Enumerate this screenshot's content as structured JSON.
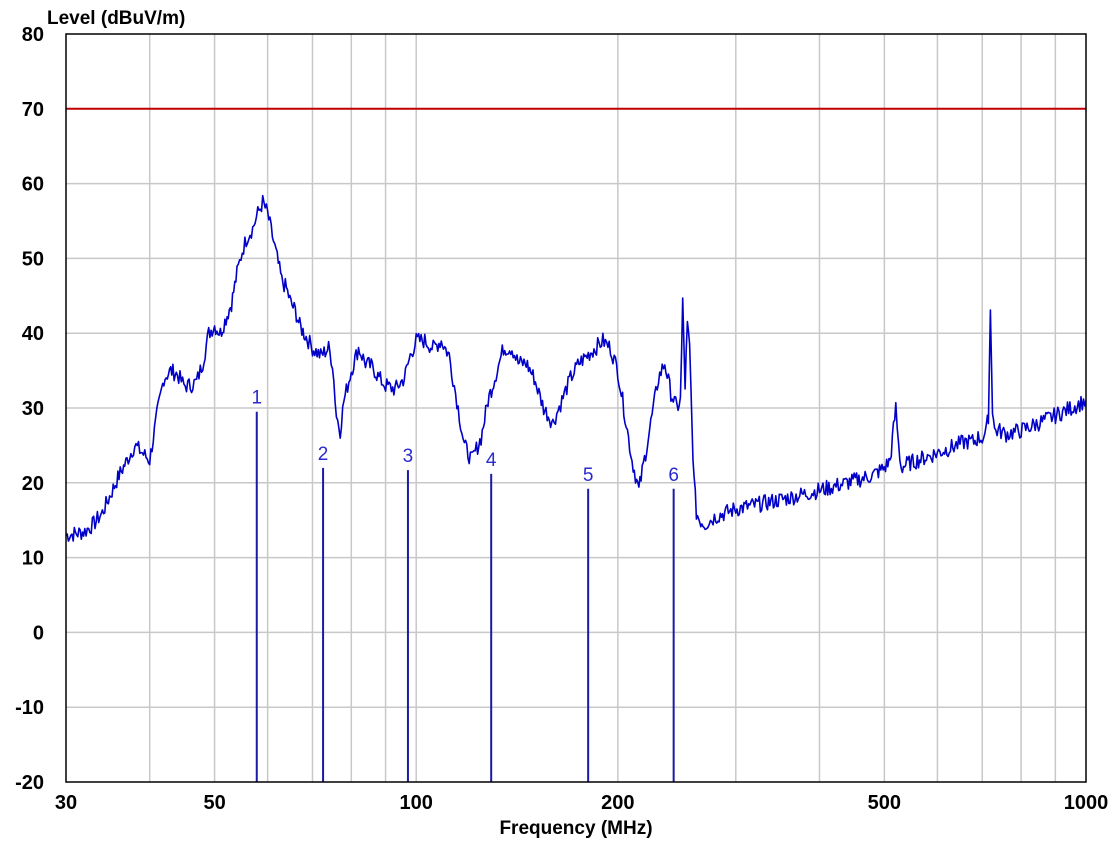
{
  "chart_data": {
    "type": "line",
    "xlabel": "Frequency (MHz)",
    "ylabel": "Level (dBuV/m)",
    "x_scale": "log",
    "xlim": [
      30,
      1000
    ],
    "ylim": [
      -20,
      80
    ],
    "x_ticks": [
      30,
      50,
      100,
      200,
      500,
      1000
    ],
    "x_minor_gridlines": [
      40,
      60,
      70,
      80,
      90,
      300,
      400,
      600,
      700,
      800,
      900
    ],
    "y_ticks": [
      -20,
      -10,
      0,
      10,
      20,
      30,
      40,
      50,
      60,
      70,
      80
    ],
    "grid": true,
    "series": [
      {
        "kind": "limit_line",
        "color": "#c00000",
        "x": [
          30,
          1000
        ],
        "y": [
          70,
          70
        ]
      },
      {
        "kind": "spectrum",
        "color": "#0000c8",
        "x": [
          30,
          31,
          32,
          33,
          34,
          35,
          36,
          37,
          38,
          39,
          40,
          41,
          42,
          43,
          44,
          45,
          46,
          47,
          48,
          49,
          50,
          51,
          52,
          53,
          54,
          55,
          56,
          57,
          58,
          59,
          60,
          61,
          62,
          63,
          64,
          65,
          66,
          67,
          68,
          69,
          70,
          72,
          74,
          75,
          76,
          77,
          78,
          80,
          82,
          84,
          86,
          88,
          90,
          93,
          96,
          98,
          100,
          103,
          106,
          109,
          112,
          115,
          118,
          121,
          125,
          128,
          131,
          135,
          139,
          142,
          146,
          150,
          155,
          160,
          165,
          170,
          175,
          180,
          185,
          190,
          195,
          200,
          205,
          210,
          215,
          220,
          225,
          230,
          235,
          240,
          245,
          248,
          250,
          252,
          254,
          256,
          258,
          260,
          262,
          265,
          270,
          275,
          280,
          290,
          300,
          320,
          340,
          360,
          380,
          400,
          420,
          440,
          460,
          480,
          500,
          510,
          520,
          525,
          530,
          540,
          560,
          580,
          600,
          620,
          640,
          660,
          680,
          690,
          700,
          710,
          715,
          720,
          725,
          730,
          740,
          760,
          800,
          850,
          900,
          950,
          1000
        ],
        "y": [
          13,
          13.2,
          13.5,
          14.5,
          16,
          18.5,
          21,
          23,
          25,
          24,
          23,
          29,
          34,
          35,
          34.5,
          33,
          33,
          33.5,
          36,
          40,
          41,
          40,
          42,
          44,
          48,
          51,
          53,
          54,
          56,
          57.5,
          56,
          53,
          50,
          47,
          46,
          44,
          43,
          41,
          40,
          39,
          38,
          37,
          38,
          36,
          29,
          27,
          31,
          35,
          38,
          36,
          35.5,
          34,
          33,
          32.5,
          34,
          37,
          39,
          39,
          38,
          39,
          37,
          31,
          25,
          23,
          26,
          31,
          34,
          38,
          38,
          36,
          36,
          34,
          30,
          28,
          31,
          34,
          36,
          37,
          38,
          39,
          38,
          35,
          29,
          23,
          19,
          24,
          29,
          34,
          36,
          32,
          30,
          31,
          44,
          33,
          41,
          38,
          28,
          20,
          16,
          15,
          14.5,
          15,
          15.5,
          16,
          16.5,
          17,
          17.5,
          18,
          18.5,
          19,
          19.5,
          20,
          20.5,
          21,
          22,
          23,
          30,
          25,
          22,
          22.5,
          23,
          23.5,
          24,
          24.5,
          25,
          25.5,
          25.5,
          26,
          26,
          27,
          29,
          43,
          30,
          27,
          27,
          26.5,
          27,
          28,
          29,
          30,
          31
        ]
      }
    ],
    "markers": [
      {
        "label": "1",
        "x": 57.8,
        "y": 29.5
      },
      {
        "label": "2",
        "x": 72.6,
        "y": 22
      },
      {
        "label": "3",
        "x": 97.2,
        "y": 21.7
      },
      {
        "label": "4",
        "x": 129.4,
        "y": 21.2
      },
      {
        "label": "5",
        "x": 180.6,
        "y": 19.2
      },
      {
        "label": "6",
        "x": 242.3,
        "y": 19.2
      }
    ]
  }
}
